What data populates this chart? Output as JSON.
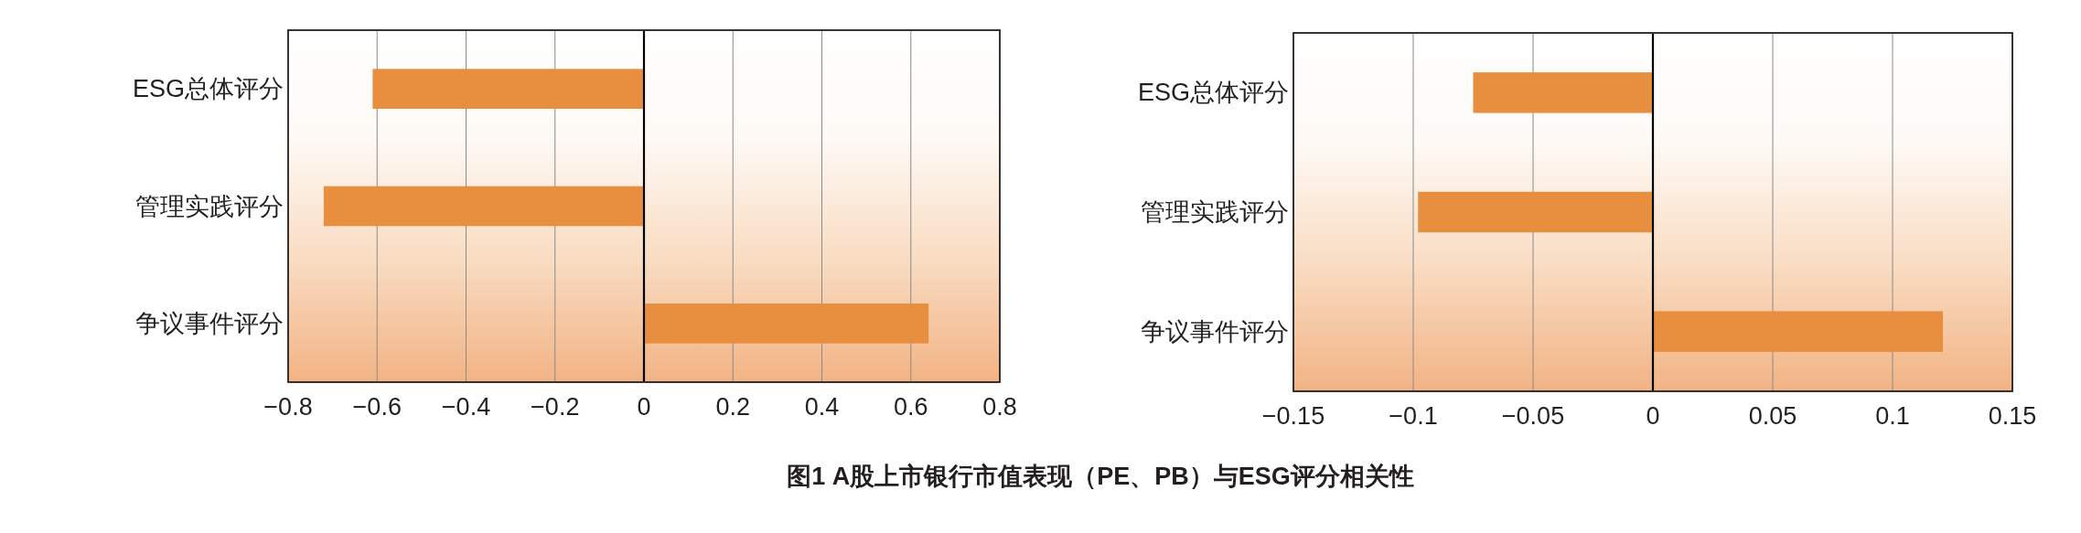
{
  "chart_data": [
    {
      "type": "bar",
      "orientation": "horizontal",
      "categories": [
        "ESG总体评分",
        "管理实践评分",
        "争议事件评分"
      ],
      "values": [
        -0.61,
        -0.72,
        0.64
      ],
      "color": "#e88e3f",
      "xlim": [
        -0.8,
        0.8
      ],
      "xticks": [
        {
          "value": -0.8,
          "label": "−0.8"
        },
        {
          "value": -0.6,
          "label": "−0.6"
        },
        {
          "value": -0.4,
          "label": "−0.4"
        },
        {
          "value": -0.2,
          "label": "−0.2"
        },
        0,
        0.2,
        0.4,
        0.6,
        0.8
      ],
      "grid": "x",
      "ref_lines": [
        {
          "axis": "x",
          "value": 0,
          "color": "#000000"
        }
      ],
      "annotations": [
        "图1 A股上市银行市值表现（PE、PB）与ESG评分相关性"
      ]
    },
    {
      "type": "bar",
      "orientation": "horizontal",
      "categories": [
        "ESG总体评分",
        "管理实践评分",
        "争议事件评分"
      ],
      "values": [
        -0.075,
        -0.098,
        0.121
      ],
      "color": "#e88e3f",
      "xlim": [
        -0.15,
        0.15
      ],
      "xticks": [
        {
          "value": -0.15,
          "label": "−0.15"
        },
        {
          "value": -0.1,
          "label": "−0.1"
        },
        {
          "value": -0.05,
          "label": "−0.05"
        },
        0,
        0.05,
        0.1,
        0.15
      ],
      "grid": "x",
      "ref_lines": [
        {
          "axis": "x",
          "value": 0,
          "color": "#000000"
        }
      ]
    }
  ]
}
